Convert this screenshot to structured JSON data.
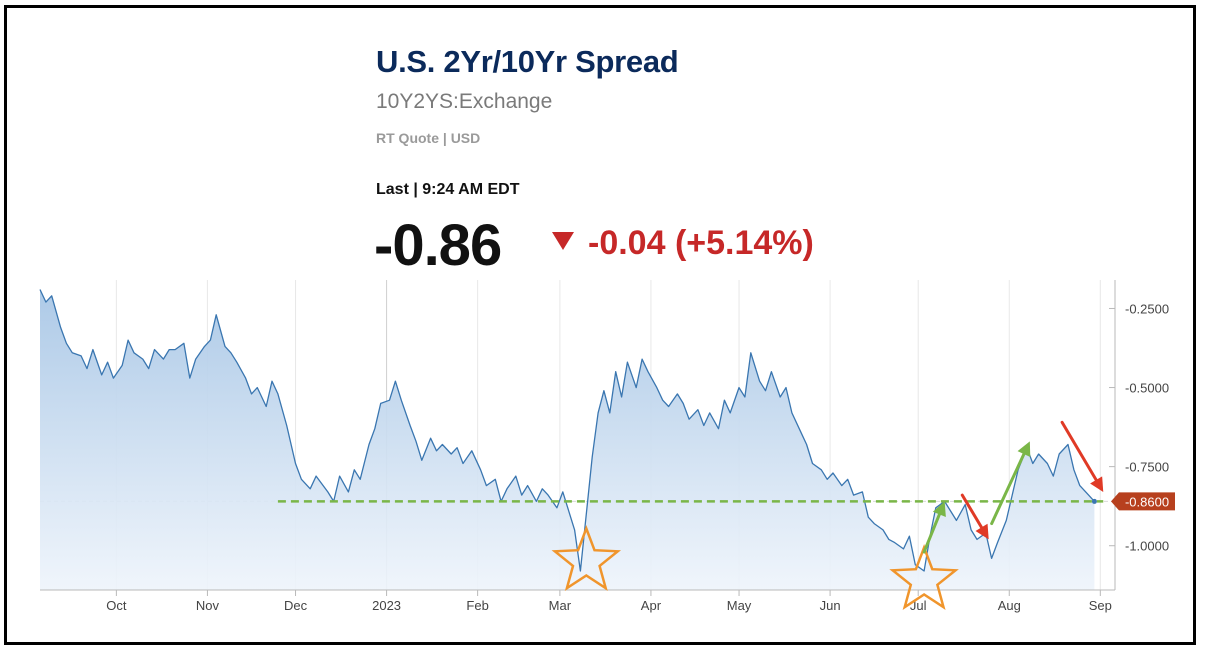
{
  "header": {
    "title": "U.S. 2Yr/10Yr Spread",
    "symbol": "10Y2YS:Exchange",
    "quote_type": "RT Quote | USD",
    "last_label": "Last | 9:24 AM EDT",
    "last_value": "-0.86",
    "change": "-0.04 (+5.14%)",
    "change_color": "#c62828",
    "title_color": "#0b2a5b"
  },
  "chart_data": {
    "type": "area",
    "title": "",
    "xlabel": "",
    "ylabel": "",
    "ylim": [
      -1.14,
      -0.16
    ],
    "y_ticks": [
      -0.25,
      -0.5,
      -0.75,
      -1.0
    ],
    "y_tick_labels": [
      "-0.2500",
      "-0.5000",
      "-0.7500",
      "-1.0000"
    ],
    "x_ticks": [
      "2022-10-01",
      "2022-11-01",
      "2022-12-01",
      "2023-01-01",
      "2023-02-01",
      "2023-03-01",
      "2023-04-01",
      "2023-05-01",
      "2023-06-01",
      "2023-07-01",
      "2023-08-01",
      "2023-09-01"
    ],
    "x_tick_labels": [
      "Oct",
      "Nov",
      "Dec",
      "2023",
      "Feb",
      "Mar",
      "Apr",
      "May",
      "Jun",
      "Jul",
      "Aug",
      "Sep"
    ],
    "x_range": [
      "2022-09-05",
      "2023-09-06"
    ],
    "grid": true,
    "line_color": "#3a76b0",
    "series": [
      {
        "points": [
          [
            "2022-09-05",
            -0.19
          ],
          [
            "2022-09-07",
            -0.23
          ],
          [
            "2022-09-09",
            -0.21
          ],
          [
            "2022-09-12",
            -0.31
          ],
          [
            "2022-09-14",
            -0.36
          ],
          [
            "2022-09-16",
            -0.39
          ],
          [
            "2022-09-19",
            -0.4
          ],
          [
            "2022-09-21",
            -0.44
          ],
          [
            "2022-09-23",
            -0.38
          ],
          [
            "2022-09-26",
            -0.46
          ],
          [
            "2022-09-28",
            -0.42
          ],
          [
            "2022-09-30",
            -0.47
          ],
          [
            "2022-10-03",
            -0.43
          ],
          [
            "2022-10-05",
            -0.35
          ],
          [
            "2022-10-07",
            -0.39
          ],
          [
            "2022-10-10",
            -0.41
          ],
          [
            "2022-10-12",
            -0.44
          ],
          [
            "2022-10-14",
            -0.38
          ],
          [
            "2022-10-17",
            -0.41
          ],
          [
            "2022-10-19",
            -0.38
          ],
          [
            "2022-10-21",
            -0.38
          ],
          [
            "2022-10-24",
            -0.36
          ],
          [
            "2022-10-26",
            -0.47
          ],
          [
            "2022-10-28",
            -0.41
          ],
          [
            "2022-10-31",
            -0.37
          ],
          [
            "2022-11-02",
            -0.35
          ],
          [
            "2022-11-04",
            -0.27
          ],
          [
            "2022-11-07",
            -0.37
          ],
          [
            "2022-11-09",
            -0.39
          ],
          [
            "2022-11-11",
            -0.42
          ],
          [
            "2022-11-14",
            -0.47
          ],
          [
            "2022-11-16",
            -0.52
          ],
          [
            "2022-11-18",
            -0.5
          ],
          [
            "2022-11-21",
            -0.56
          ],
          [
            "2022-11-23",
            -0.48
          ],
          [
            "2022-11-25",
            -0.52
          ],
          [
            "2022-11-28",
            -0.62
          ],
          [
            "2022-12-01",
            -0.74
          ],
          [
            "2022-12-03",
            -0.79
          ],
          [
            "2022-12-06",
            -0.82
          ],
          [
            "2022-12-08",
            -0.78
          ],
          [
            "2022-12-12",
            -0.83
          ],
          [
            "2022-12-14",
            -0.86
          ],
          [
            "2022-12-16",
            -0.78
          ],
          [
            "2022-12-19",
            -0.83
          ],
          [
            "2022-12-21",
            -0.76
          ],
          [
            "2022-12-23",
            -0.79
          ],
          [
            "2022-12-26",
            -0.68
          ],
          [
            "2022-12-28",
            -0.63
          ],
          [
            "2022-12-30",
            -0.55
          ],
          [
            "2023-01-02",
            -0.54
          ],
          [
            "2023-01-04",
            -0.48
          ],
          [
            "2023-01-06",
            -0.54
          ],
          [
            "2023-01-09",
            -0.62
          ],
          [
            "2023-01-11",
            -0.67
          ],
          [
            "2023-01-13",
            -0.73
          ],
          [
            "2023-01-16",
            -0.66
          ],
          [
            "2023-01-18",
            -0.7
          ],
          [
            "2023-01-20",
            -0.68
          ],
          [
            "2023-01-23",
            -0.71
          ],
          [
            "2023-01-25",
            -0.69
          ],
          [
            "2023-01-27",
            -0.74
          ],
          [
            "2023-01-30",
            -0.7
          ],
          [
            "2023-02-02",
            -0.76
          ],
          [
            "2023-02-04",
            -0.81
          ],
          [
            "2023-02-07",
            -0.79
          ],
          [
            "2023-02-09",
            -0.86
          ],
          [
            "2023-02-11",
            -0.82
          ],
          [
            "2023-02-14",
            -0.78
          ],
          [
            "2023-02-16",
            -0.84
          ],
          [
            "2023-02-18",
            -0.81
          ],
          [
            "2023-02-21",
            -0.86
          ],
          [
            "2023-02-23",
            -0.82
          ],
          [
            "2023-02-25",
            -0.84
          ],
          [
            "2023-02-28",
            -0.88
          ],
          [
            "2023-03-02",
            -0.83
          ],
          [
            "2023-03-04",
            -0.89
          ],
          [
            "2023-03-06",
            -0.95
          ],
          [
            "2023-03-08",
            -1.08
          ],
          [
            "2023-03-10",
            -0.9
          ],
          [
            "2023-03-12",
            -0.72
          ],
          [
            "2023-03-14",
            -0.58
          ],
          [
            "2023-03-16",
            -0.51
          ],
          [
            "2023-03-18",
            -0.58
          ],
          [
            "2023-03-20",
            -0.45
          ],
          [
            "2023-03-22",
            -0.53
          ],
          [
            "2023-03-24",
            -0.42
          ],
          [
            "2023-03-27",
            -0.5
          ],
          [
            "2023-03-29",
            -0.41
          ],
          [
            "2023-03-31",
            -0.45
          ],
          [
            "2023-04-03",
            -0.5
          ],
          [
            "2023-04-05",
            -0.54
          ],
          [
            "2023-04-07",
            -0.56
          ],
          [
            "2023-04-10",
            -0.52
          ],
          [
            "2023-04-12",
            -0.55
          ],
          [
            "2023-04-14",
            -0.6
          ],
          [
            "2023-04-17",
            -0.57
          ],
          [
            "2023-04-19",
            -0.62
          ],
          [
            "2023-04-21",
            -0.58
          ],
          [
            "2023-04-24",
            -0.63
          ],
          [
            "2023-04-26",
            -0.54
          ],
          [
            "2023-04-28",
            -0.58
          ],
          [
            "2023-05-01",
            -0.5
          ],
          [
            "2023-05-03",
            -0.53
          ],
          [
            "2023-05-05",
            -0.39
          ],
          [
            "2023-05-08",
            -0.48
          ],
          [
            "2023-05-10",
            -0.51
          ],
          [
            "2023-05-12",
            -0.45
          ],
          [
            "2023-05-15",
            -0.53
          ],
          [
            "2023-05-17",
            -0.5
          ],
          [
            "2023-05-19",
            -0.58
          ],
          [
            "2023-05-22",
            -0.64
          ],
          [
            "2023-05-24",
            -0.68
          ],
          [
            "2023-05-26",
            -0.74
          ],
          [
            "2023-05-29",
            -0.76
          ],
          [
            "2023-05-31",
            -0.79
          ],
          [
            "2023-06-02",
            -0.77
          ],
          [
            "2023-06-05",
            -0.81
          ],
          [
            "2023-06-07",
            -0.79
          ],
          [
            "2023-06-09",
            -0.84
          ],
          [
            "2023-06-12",
            -0.83
          ],
          [
            "2023-06-14",
            -0.91
          ],
          [
            "2023-06-16",
            -0.93
          ],
          [
            "2023-06-19",
            -0.95
          ],
          [
            "2023-06-21",
            -0.98
          ],
          [
            "2023-06-23",
            -0.99
          ],
          [
            "2023-06-26",
            -1.01
          ],
          [
            "2023-06-28",
            -0.97
          ],
          [
            "2023-06-30",
            -1.06
          ],
          [
            "2023-07-03",
            -1.08
          ],
          [
            "2023-07-05",
            -0.97
          ],
          [
            "2023-07-07",
            -0.88
          ],
          [
            "2023-07-10",
            -0.86
          ],
          [
            "2023-07-12",
            -0.89
          ],
          [
            "2023-07-14",
            -0.92
          ],
          [
            "2023-07-17",
            -0.87
          ],
          [
            "2023-07-19",
            -0.95
          ],
          [
            "2023-07-21",
            -0.98
          ],
          [
            "2023-07-24",
            -0.96
          ],
          [
            "2023-07-26",
            -1.04
          ],
          [
            "2023-07-28",
            -0.99
          ],
          [
            "2023-07-31",
            -0.92
          ],
          [
            "2023-08-02",
            -0.84
          ],
          [
            "2023-08-04",
            -0.76
          ],
          [
            "2023-08-07",
            -0.69
          ],
          [
            "2023-08-09",
            -0.74
          ],
          [
            "2023-08-11",
            -0.71
          ],
          [
            "2023-08-14",
            -0.74
          ],
          [
            "2023-08-16",
            -0.78
          ],
          [
            "2023-08-18",
            -0.71
          ],
          [
            "2023-08-21",
            -0.68
          ],
          [
            "2023-08-23",
            -0.76
          ],
          [
            "2023-08-25",
            -0.81
          ],
          [
            "2023-08-28",
            -0.84
          ],
          [
            "2023-08-30",
            -0.86
          ]
        ]
      }
    ],
    "current_value_label": "-0.8600",
    "current_value": -0.86,
    "current_value_color": "#b7401e",
    "annotations": [
      {
        "type": "dashed-line",
        "color": "#7ab648",
        "y": -0.86,
        "from": "2022-11-25",
        "to": "2023-09-02"
      },
      {
        "type": "star",
        "color": "#f0952c",
        "x": "2023-03-10",
        "y": -1.05
      },
      {
        "type": "star",
        "color": "#f0952c",
        "x": "2023-07-03",
        "y": -1.11
      },
      {
        "type": "arrow",
        "color": "#7ab648",
        "from": [
          "2023-07-03",
          -1.02
        ],
        "to": [
          "2023-07-10",
          -0.86
        ]
      },
      {
        "type": "arrow",
        "color": "#e03a26",
        "from": [
          "2023-07-16",
          -0.84
        ],
        "to": [
          "2023-07-25",
          -0.98
        ]
      },
      {
        "type": "arrow",
        "color": "#7ab648",
        "from": [
          "2023-07-26",
          -0.93
        ],
        "to": [
          "2023-08-08",
          -0.67
        ]
      },
      {
        "type": "arrow",
        "color": "#e03a26",
        "from": [
          "2023-08-19",
          -0.61
        ],
        "to": [
          "2023-09-02",
          -0.83
        ]
      }
    ]
  }
}
